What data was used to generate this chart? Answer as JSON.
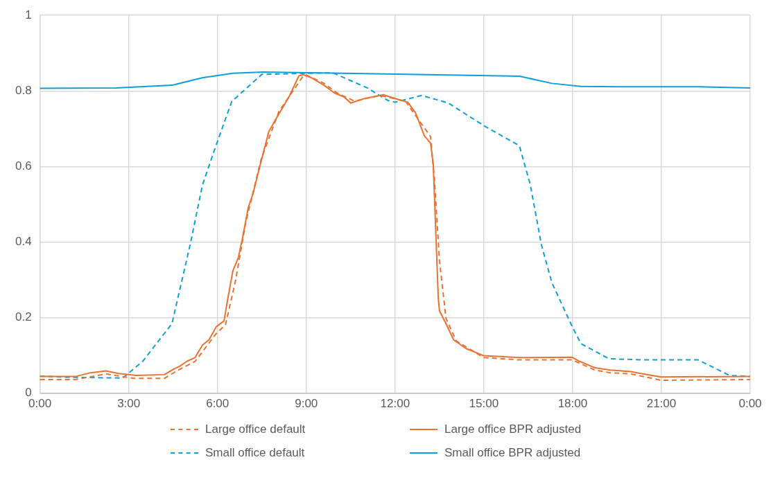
{
  "chart_data": {
    "type": "line",
    "xlim": [
      0,
      24
    ],
    "ylim": [
      0,
      1
    ],
    "xticks": [
      {
        "value": 0,
        "label": "0:00"
      },
      {
        "value": 3,
        "label": "3:00"
      },
      {
        "value": 6,
        "label": "6:00"
      },
      {
        "value": 9,
        "label": "9:00"
      },
      {
        "value": 12,
        "label": "12:00"
      },
      {
        "value": 15,
        "label": "15:00"
      },
      {
        "value": 18,
        "label": "18:00"
      },
      {
        "value": 21,
        "label": "21:00"
      },
      {
        "value": 24,
        "label": "0:00"
      }
    ],
    "yticks": [
      0,
      0.2,
      0.4,
      0.6,
      0.8,
      1
    ],
    "grid": true,
    "legend": "bottom",
    "marker": "none",
    "series": [
      {
        "name": "Large office default",
        "color": "#e97132",
        "line_style": "dashed",
        "x": [
          0,
          1.2,
          2.23,
          3.17,
          4.2,
          4.72,
          5.24,
          5.96,
          6.27,
          6.61,
          6.95,
          7.47,
          8.07,
          8.89,
          9.0,
          9.6,
          10.03,
          10.63,
          11.49,
          12.35,
          12.78,
          13.2,
          13.33,
          13.5,
          13.72,
          14.07,
          15.0,
          16.2,
          17.98,
          18.76,
          19.27,
          19.96,
          20.99,
          24
        ],
        "values": [
          0.036,
          0.036,
          0.051,
          0.039,
          0.039,
          0.063,
          0.084,
          0.158,
          0.181,
          0.298,
          0.451,
          0.618,
          0.745,
          0.839,
          0.842,
          0.82,
          0.795,
          0.773,
          0.788,
          0.773,
          0.725,
          0.679,
          0.565,
          0.351,
          0.198,
          0.138,
          0.094,
          0.088,
          0.088,
          0.061,
          0.054,
          0.051,
          0.034,
          0.036
        ]
      },
      {
        "name": "Large office BPR adjusted",
        "color": "#e97132",
        "line_style": "solid",
        "x": [
          0,
          1.2,
          1.71,
          2.23,
          2.66,
          3.26,
          4.2,
          4.55,
          4.72,
          4.98,
          5.24,
          5.49,
          5.71,
          5.96,
          6.22,
          6.35,
          6.52,
          6.7,
          6.83,
          7.04,
          7.21,
          7.38,
          7.73,
          7.94,
          8.42,
          8.75,
          8.9,
          9.17,
          9.6,
          9.94,
          10.28,
          10.5,
          10.97,
          11.49,
          11.6,
          12.0,
          12.43,
          12.69,
          12.99,
          13.2,
          13.29,
          13.38,
          13.46,
          13.5,
          13.72,
          13.98,
          14.4,
          15.0,
          16.2,
          17.98,
          18.24,
          18.76,
          19.27,
          19.96,
          20.3,
          20.99,
          24
        ],
        "values": [
          0.044,
          0.044,
          0.054,
          0.059,
          0.052,
          0.047,
          0.049,
          0.065,
          0.071,
          0.085,
          0.094,
          0.127,
          0.141,
          0.176,
          0.191,
          0.251,
          0.324,
          0.358,
          0.405,
          0.491,
          0.531,
          0.585,
          0.692,
          0.721,
          0.785,
          0.84,
          0.843,
          0.835,
          0.815,
          0.795,
          0.784,
          0.768,
          0.78,
          0.788,
          0.79,
          0.78,
          0.77,
          0.742,
          0.681,
          0.662,
          0.605,
          0.418,
          0.251,
          0.218,
          0.184,
          0.141,
          0.118,
          0.099,
          0.094,
          0.095,
          0.084,
          0.067,
          0.061,
          0.057,
          0.052,
          0.043,
          0.044
        ]
      },
      {
        "name": "Small office default",
        "color": "#0f9ed5",
        "line_style": "dashed",
        "x": [
          0,
          1,
          2.8,
          3.47,
          4.46,
          5.07,
          5.49,
          5.96,
          6.48,
          7.5,
          9.9,
          10.07,
          11.06,
          11.75,
          12.0,
          12.9,
          13.8,
          15.0,
          16.2,
          16.57,
          16.95,
          17.3,
          17.98,
          18.28,
          19.23,
          20.47,
          22.24,
          23.3,
          24
        ],
        "values": [
          0.045,
          0.042,
          0.04,
          0.084,
          0.184,
          0.391,
          0.551,
          0.658,
          0.772,
          0.844,
          0.848,
          0.842,
          0.808,
          0.775,
          0.77,
          0.788,
          0.768,
          0.708,
          0.655,
          0.551,
          0.391,
          0.292,
          0.177,
          0.131,
          0.091,
          0.088,
          0.088,
          0.047,
          0.044
        ]
      },
      {
        "name": "Small office BPR adjusted",
        "color": "#0f9ed5",
        "line_style": "solid",
        "x": [
          0,
          2.57,
          4.46,
          5.49,
          6.52,
          7.55,
          11.66,
          16.2,
          17.3,
          18.28,
          19.5,
          22.3,
          24
        ],
        "values": [
          0.807,
          0.808,
          0.815,
          0.835,
          0.847,
          0.85,
          0.845,
          0.839,
          0.82,
          0.812,
          0.811,
          0.811,
          0.808
        ]
      }
    ]
  }
}
